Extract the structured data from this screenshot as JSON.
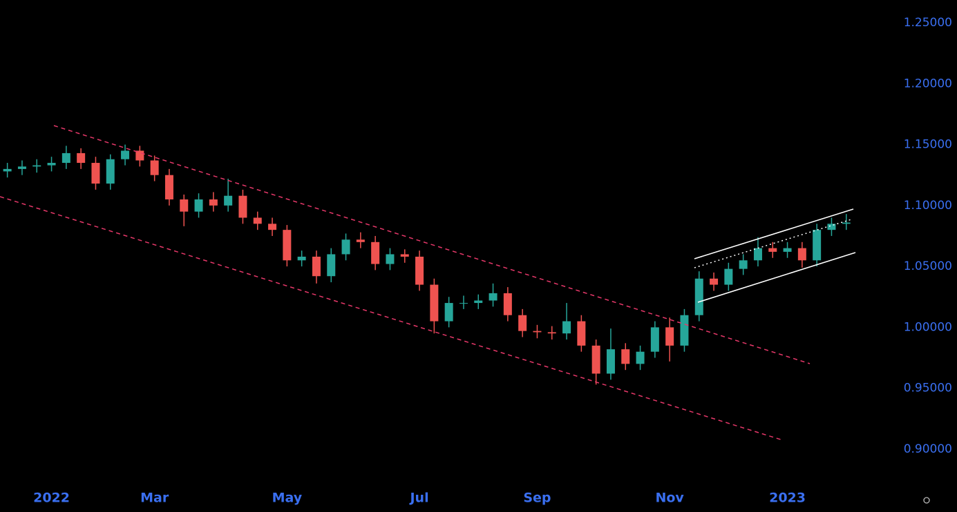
{
  "chart_data": {
    "type": "candlestick",
    "categories": [
      null,
      null,
      null,
      "2022",
      null,
      null,
      null,
      null,
      null,
      null,
      "Mar",
      null,
      null,
      null,
      null,
      null,
      null,
      null,
      null,
      "May",
      null,
      null,
      null,
      null,
      null,
      null,
      null,
      null,
      "Jul",
      null,
      null,
      null,
      null,
      null,
      null,
      null,
      "Sep",
      null,
      null,
      null,
      null,
      null,
      null,
      null,
      null,
      "Nov",
      null,
      null,
      null,
      null,
      null,
      null,
      null,
      "2023",
      null,
      null,
      null,
      null
    ],
    "open": [
      1.128,
      1.13,
      1.132,
      1.133,
      1.135,
      1.143,
      1.135,
      1.118,
      1.138,
      1.145,
      1.137,
      1.125,
      1.105,
      1.095,
      1.105,
      1.1,
      1.108,
      1.09,
      1.085,
      1.08,
      1.055,
      1.058,
      1.042,
      1.06,
      1.072,
      1.07,
      1.052,
      1.06,
      1.058,
      1.035,
      1.005,
      1.02,
      1.02,
      1.022,
      1.028,
      1.01,
      0.997,
      0.996,
      0.995,
      1.005,
      0.985,
      0.962,
      0.982,
      0.97,
      0.98,
      1.0,
      0.985,
      1.01,
      1.04,
      1.035,
      1.048,
      1.055,
      1.065,
      1.062,
      1.065,
      1.055,
      1.08,
      1.085
    ],
    "high": [
      1.135,
      1.137,
      1.138,
      1.14,
      1.149,
      1.147,
      1.14,
      1.142,
      1.15,
      1.149,
      1.141,
      1.13,
      1.109,
      1.11,
      1.111,
      1.122,
      1.113,
      1.095,
      1.09,
      1.084,
      1.063,
      1.063,
      1.065,
      1.077,
      1.078,
      1.075,
      1.065,
      1.064,
      1.063,
      1.04,
      1.025,
      1.026,
      1.027,
      1.036,
      1.033,
      1.015,
      1.002,
      1.001,
      1.02,
      1.01,
      0.99,
      0.999,
      0.987,
      0.985,
      1.005,
      1.008,
      1.015,
      1.046,
      1.045,
      1.053,
      1.06,
      1.074,
      1.07,
      1.07,
      1.07,
      1.085,
      1.09,
      1.093
    ],
    "low": [
      1.123,
      1.125,
      1.127,
      1.128,
      1.13,
      1.13,
      1.113,
      1.113,
      1.133,
      1.132,
      1.12,
      1.1,
      1.083,
      1.09,
      1.095,
      1.095,
      1.085,
      1.08,
      1.075,
      1.05,
      1.05,
      1.036,
      1.037,
      1.055,
      1.065,
      1.047,
      1.047,
      1.053,
      1.03,
      0.995,
      1.0,
      1.015,
      1.015,
      1.017,
      1.005,
      0.992,
      0.991,
      0.99,
      0.99,
      0.98,
      0.953,
      0.957,
      0.965,
      0.965,
      0.975,
      0.972,
      0.98,
      1.005,
      1.03,
      1.03,
      1.043,
      1.05,
      1.057,
      1.057,
      1.049,
      1.05,
      1.075,
      1.08
    ],
    "close": [
      1.13,
      1.132,
      1.133,
      1.135,
      1.143,
      1.135,
      1.118,
      1.138,
      1.145,
      1.137,
      1.125,
      1.105,
      1.095,
      1.105,
      1.1,
      1.108,
      1.09,
      1.085,
      1.08,
      1.055,
      1.058,
      1.042,
      1.06,
      1.072,
      1.07,
      1.052,
      1.06,
      1.058,
      1.035,
      1.005,
      1.02,
      1.02,
      1.022,
      1.028,
      1.01,
      0.997,
      0.996,
      0.995,
      1.005,
      0.985,
      0.962,
      0.982,
      0.97,
      0.98,
      1.0,
      0.985,
      1.01,
      1.04,
      1.035,
      1.048,
      1.055,
      1.065,
      1.062,
      1.065,
      1.055,
      1.08,
      1.085,
      1.086
    ],
    "up_color": "#26a69a",
    "down_color": "#ef5350",
    "ylim": [
      0.8722,
      1.2687
    ],
    "yticks": [
      {
        "value": 0.9,
        "label": "0.90000"
      },
      {
        "value": 0.95,
        "label": "0.95000"
      },
      {
        "value": 1.0,
        "label": "1.00000"
      },
      {
        "value": 1.05,
        "label": "1.05000"
      },
      {
        "value": 1.1,
        "label": "1.10000"
      },
      {
        "value": 1.15,
        "label": "1.15000"
      },
      {
        "value": 1.2,
        "label": "1.20000"
      },
      {
        "value": 1.25,
        "label": "1.25000"
      }
    ]
  }
}
